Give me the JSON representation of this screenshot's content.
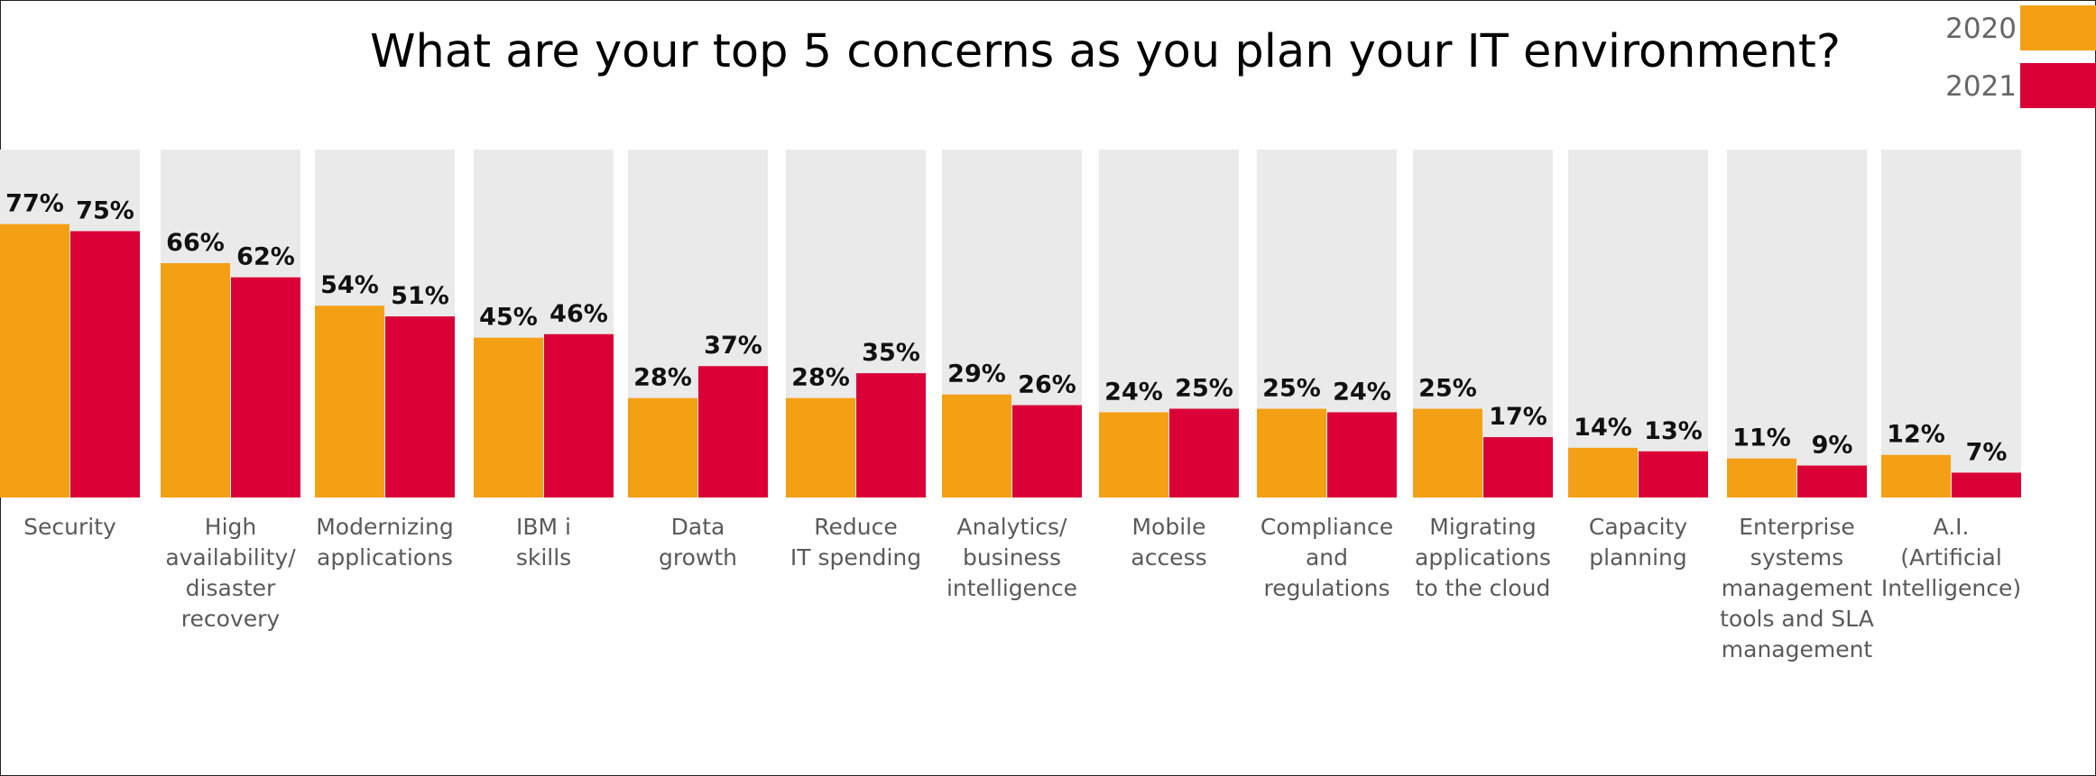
{
  "chart_data": {
    "type": "bar",
    "title": "What are your top 5 concerns as you plan your IT environment?",
    "ylim": [
      0,
      100
    ],
    "legend_position": "top-right",
    "categories": [
      "Security",
      "High availability/ disaster recovery",
      "Modernizing applications",
      "IBM i skills",
      "Data growth",
      "Reduce IT spending",
      "Analytics/ business intelligence",
      "Mobile access",
      "Compliance and regulations",
      "Migrating applications to the cloud",
      "Capacity planning",
      "Enterprise systems management tools and SLA management",
      "A.I. (Artificial Intelligence)"
    ],
    "category_lines": [
      [
        "Security"
      ],
      [
        "High",
        "availability/",
        "disaster",
        "recovery"
      ],
      [
        "Modernizing",
        "applications"
      ],
      [
        "IBM i",
        "skills"
      ],
      [
        "Data",
        "growth"
      ],
      [
        "Reduce",
        "IT spending"
      ],
      [
        "Analytics/",
        "business",
        "intelligence"
      ],
      [
        "Mobile",
        "access"
      ],
      [
        "Compliance",
        "and",
        "regulations"
      ],
      [
        "Migrating",
        "applications",
        "to the cloud"
      ],
      [
        "Capacity",
        "planning"
      ],
      [
        "Enterprise",
        "systems",
        "management",
        "tools and SLA",
        "management"
      ],
      [
        "A.I.",
        "(Artificial",
        "Intelligence)"
      ]
    ],
    "series": [
      {
        "name": "2020",
        "color": "#F4A015",
        "values": [
          77,
          66,
          54,
          45,
          28,
          28,
          29,
          24,
          25,
          25,
          14,
          11,
          12
        ],
        "labels": [
          "77%",
          "66%",
          "54%",
          "45%",
          "28%",
          "28%",
          "29%",
          "24%",
          "25%",
          "25%",
          "14%",
          "11%",
          "12%"
        ]
      },
      {
        "name": "2021",
        "color": "#DA0037",
        "values": [
          75,
          62,
          51,
          46,
          37,
          35,
          26,
          25,
          24,
          17,
          13,
          9,
          7
        ],
        "labels": [
          "75%",
          "62%",
          "51%",
          "46%",
          "37%",
          "35%",
          "26%",
          "25%",
          "24%",
          "17%",
          "13%",
          "9%",
          "7%"
        ]
      }
    ],
    "panel_color": "#EAEAEA",
    "grid": false
  }
}
